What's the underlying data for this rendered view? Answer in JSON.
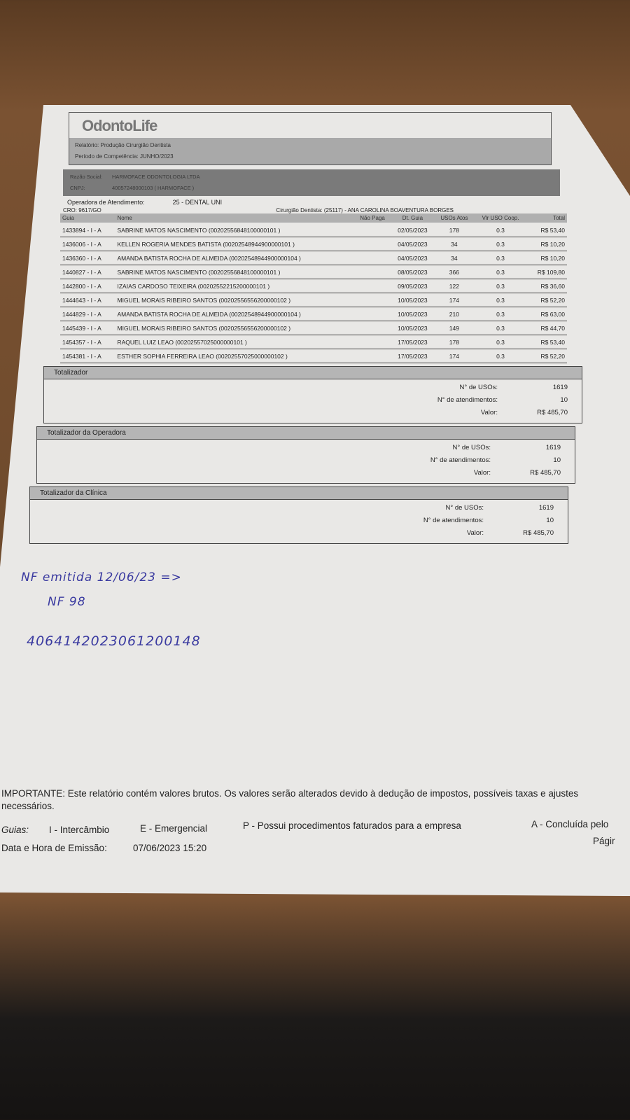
{
  "header": {
    "logo": "OdontoLife",
    "report_label": "Relatório:",
    "report": "Produção Cirurgião Dentista",
    "period_label": "Período de Competência:",
    "period": "JUNHO/2023",
    "razao_label": "Razão Social:",
    "razao": "HARMOFACE ODONTOLOGIA LTDA",
    "cnpj_label": "CNPJ:",
    "cnpj": "40057248000103 ( HARMOFACE )",
    "operadora_label": "Operadora de Atendimento:",
    "operadora": "25 - DENTAL UNI",
    "cro": "CRO: 9617/GO",
    "dentista": "Cirurgião Dentista: (25117) - ANA CAROLINA BOAVENTURA BORGES"
  },
  "table": {
    "columns": [
      "Guia",
      "Nome",
      "Não Paga",
      "Dt. Guia",
      "USOs Atos",
      "Vlr USO Coop.",
      "Total"
    ],
    "rows": [
      [
        "1433894 - I - A",
        "SABRINE MATOS NASCIMENTO (00202556848100000101 )",
        "",
        "02/05/2023",
        "178",
        "0.3",
        "R$ 53,40"
      ],
      [
        "1436006 - I - A",
        "KELLEN ROGERIA MENDES BATISTA (00202548944900000101 )",
        "",
        "04/05/2023",
        "34",
        "0.3",
        "R$ 10,20"
      ],
      [
        "1436360 - I - A",
        "AMANDA BATISTA ROCHA DE ALMEIDA (00202548944900000104 )",
        "",
        "04/05/2023",
        "34",
        "0.3",
        "R$ 10,20"
      ],
      [
        "1440827 - I - A",
        "SABRINE MATOS NASCIMENTO (00202556848100000101 )",
        "",
        "08/05/2023",
        "366",
        "0.3",
        "R$ 109,80"
      ],
      [
        "1442800 - I - A",
        "IZAIAS CARDOSO TEIXEIRA (00202552215200000101 )",
        "",
        "09/05/2023",
        "122",
        "0.3",
        "R$ 36,60"
      ],
      [
        "1444643 - I - A",
        "MIGUEL MORAIS RIBEIRO SANTOS (00202556556200000102 )",
        "",
        "10/05/2023",
        "174",
        "0.3",
        "R$ 52,20"
      ],
      [
        "1444829 - I - A",
        "AMANDA BATISTA ROCHA DE ALMEIDA (00202548944900000104 )",
        "",
        "10/05/2023",
        "210",
        "0.3",
        "R$ 63,00"
      ],
      [
        "1445439 - I - A",
        "MIGUEL MORAIS RIBEIRO SANTOS (00202556556200000102 )",
        "",
        "10/05/2023",
        "149",
        "0.3",
        "R$ 44,70"
      ],
      [
        "1454357 - I - A",
        "RAQUEL LUIZ LEAO (00202557025000000101 )",
        "",
        "17/05/2023",
        "178",
        "0.3",
        "R$ 53,40"
      ],
      [
        "1454381 - I - A",
        "ESTHER SOPHIA FERREIRA LEAO (00202557025000000102 )",
        "",
        "17/05/2023",
        "174",
        "0.3",
        "R$ 52,20"
      ]
    ]
  },
  "totals": [
    {
      "title": "Totalizador",
      "usos_label": "N° de USOs:",
      "usos": "1619",
      "atend_label": "N° de atendimentos:",
      "atend": "10",
      "valor_label": "Valor:",
      "valor": "R$ 485,70"
    },
    {
      "title": "Totalizador da Operadora",
      "usos_label": "N° de USOs:",
      "usos": "1619",
      "atend_label": "N° de atendimentos:",
      "atend": "10",
      "valor_label": "Valor:",
      "valor": "R$ 485,70"
    },
    {
      "title": "Totalizador da Clínica",
      "usos_label": "N° de USOs:",
      "usos": "1619",
      "atend_label": "N° de atendimentos:",
      "atend": "10",
      "valor_label": "Valor:",
      "valor": "R$ 485,70"
    }
  ],
  "handwriting": {
    "line1": "NF emitida 12/06/23 =>",
    "line2": "NF 98",
    "line3": "4064142023061200148"
  },
  "footer": {
    "important": "IMPORTANTE: Este relatório contém valores brutos. Os valores serão alterados devido à dedução de impostos, possíveis taxas e ajustes necessários.",
    "guias_label": "Guias:",
    "guia_i": "I - Intercâmbio",
    "guia_e": "E - Emergencial",
    "guia_p": "P - Possui procedimentos faturados para a empresa",
    "guia_a": "A - Concluída pelo",
    "emissao_label": "Data e Hora de Emissão:",
    "emissao": "07/06/2023  15:20",
    "pagina": "Págir"
  }
}
